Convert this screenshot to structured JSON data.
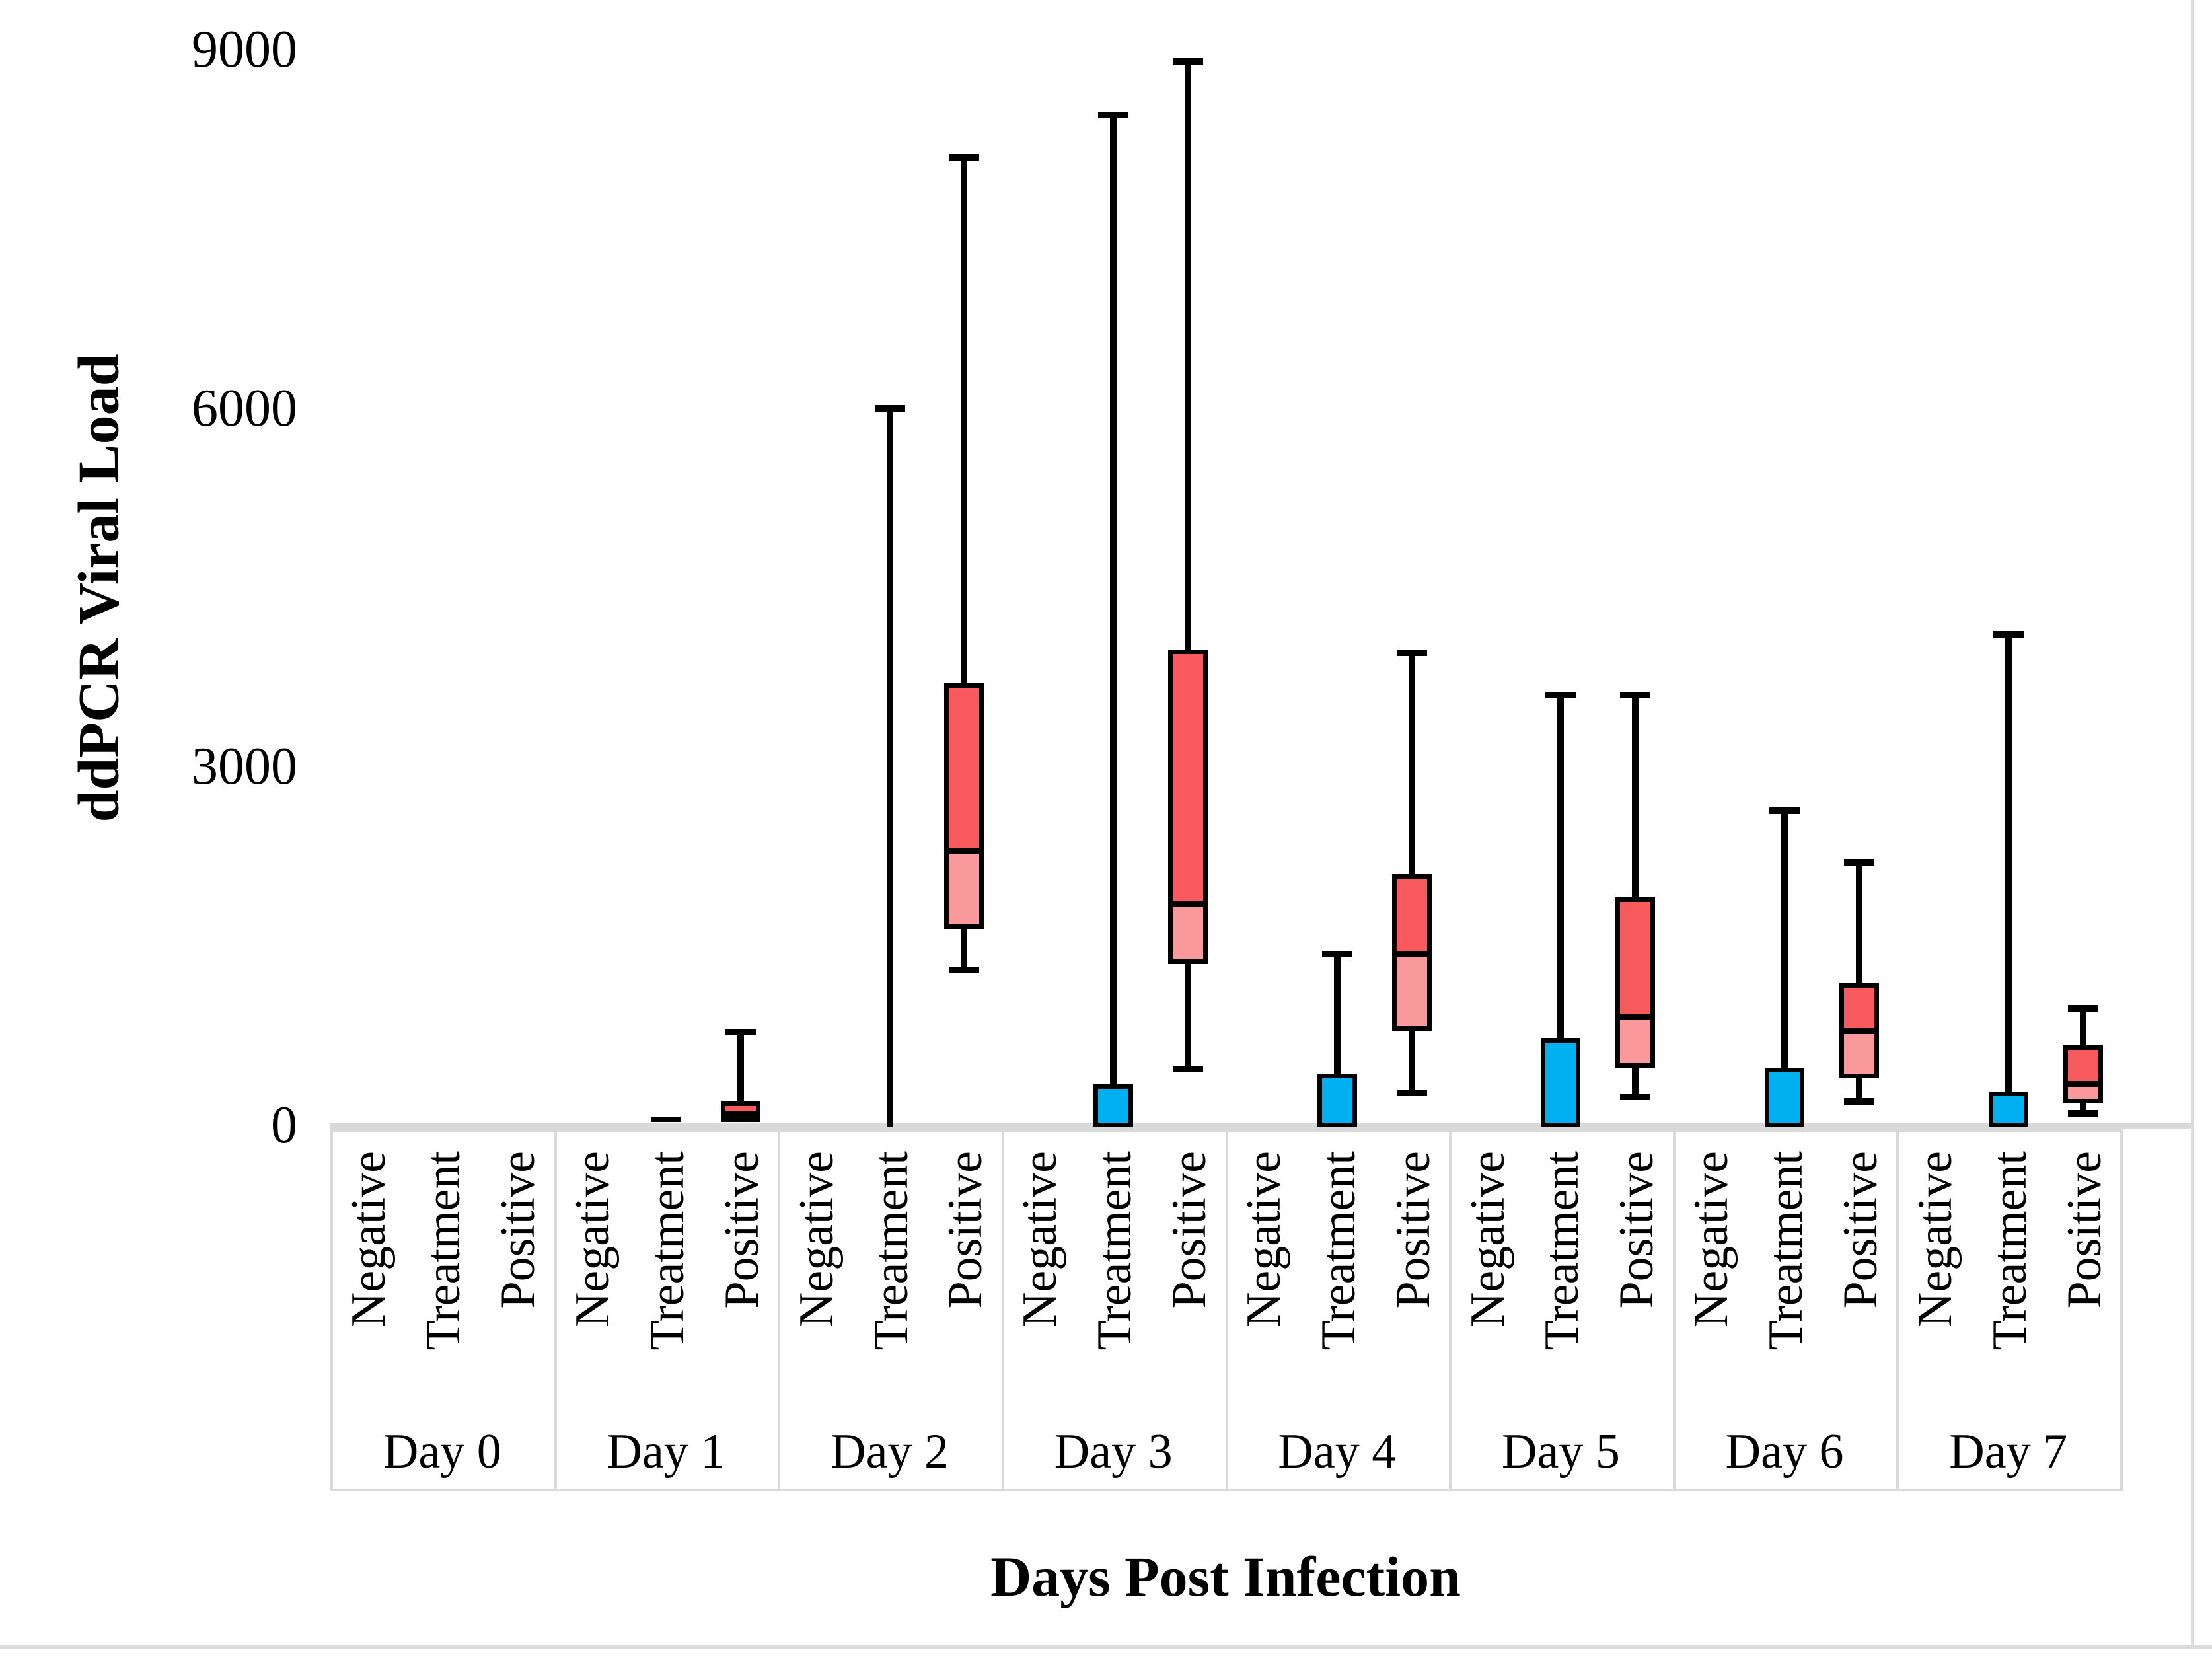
{
  "figure": {
    "background_color": "#ffffff",
    "plot_border_color": "#d9d9d9",
    "axis_band_border_color": "#d9d9d9"
  },
  "colors": {
    "treatment_box_fill": "#00b0f0",
    "positive_box_upper_fill": "#f7595c",
    "positive_box_lower_fill": "#f9999b",
    "box_border": "#000000",
    "whisker": "#000000",
    "median": "#000000"
  },
  "chart_data": {
    "type": "boxplot",
    "title": "",
    "xlabel": "Days Post Infection",
    "ylabel": "ddPCR Viral Load",
    "ylim": [
      0,
      9000
    ],
    "y_ticks": [
      0,
      3000,
      6000,
      9000
    ],
    "grid": "off",
    "legend": "none",
    "group_categories": [
      "Day 0",
      "Day 1",
      "Day 2",
      "Day 3",
      "Day 4",
      "Day 5",
      "Day 6",
      "Day 7"
    ],
    "sub_categories": [
      "Negative",
      "Treatment",
      "Positive"
    ],
    "boxes": [
      {
        "day": "Day 0",
        "category": "Negative",
        "values": null
      },
      {
        "day": "Day 0",
        "category": "Treatment",
        "values": null
      },
      {
        "day": "Day 0",
        "category": "Positive",
        "values": null
      },
      {
        "day": "Day 1",
        "category": "Negative",
        "values": null
      },
      {
        "day": "Day 1",
        "category": "Treatment",
        "values": {
          "min": 0,
          "q1": 0,
          "median": 0,
          "q3": 0,
          "max": 0
        }
      },
      {
        "day": "Day 1",
        "category": "Positive",
        "values": {
          "min": 30,
          "q1": 30,
          "median": 100,
          "q3": 200,
          "max": 780
        }
      },
      {
        "day": "Day 2",
        "category": "Negative",
        "values": null
      },
      {
        "day": "Day 2",
        "category": "Treatment",
        "values": {
          "min": 0,
          "q1": 0,
          "median": 0,
          "q3": 0,
          "max": 6000
        }
      },
      {
        "day": "Day 2",
        "category": "Positive",
        "values": {
          "min": 1300,
          "q1": 1640,
          "median": 2300,
          "q3": 3700,
          "max": 8100
        }
      },
      {
        "day": "Day 3",
        "category": "Negative",
        "values": null
      },
      {
        "day": "Day 3",
        "category": "Treatment",
        "values": {
          "min": 0,
          "q1": 0,
          "median": 0,
          "q3": 340,
          "max": 8450
        }
      },
      {
        "day": "Day 3",
        "category": "Positive",
        "values": {
          "min": 470,
          "q1": 1350,
          "median": 1850,
          "q3": 3980,
          "max": 8900
        }
      },
      {
        "day": "Day 4",
        "category": "Negative",
        "values": null
      },
      {
        "day": "Day 4",
        "category": "Treatment",
        "values": {
          "min": 0,
          "q1": 0,
          "median": 0,
          "q3": 430,
          "max": 1430
        }
      },
      {
        "day": "Day 4",
        "category": "Positive",
        "values": {
          "min": 270,
          "q1": 790,
          "median": 1430,
          "q3": 2100,
          "max": 3950
        }
      },
      {
        "day": "Day 5",
        "category": "Negative",
        "values": null
      },
      {
        "day": "Day 5",
        "category": "Treatment",
        "values": {
          "min": 0,
          "q1": 0,
          "median": 0,
          "q3": 730,
          "max": 3600
        }
      },
      {
        "day": "Day 5",
        "category": "Positive",
        "values": {
          "min": 240,
          "q1": 480,
          "median": 910,
          "q3": 1910,
          "max": 3600
        }
      },
      {
        "day": "Day 6",
        "category": "Negative",
        "values": null
      },
      {
        "day": "Day 6",
        "category": "Treatment",
        "values": {
          "min": 0,
          "q1": 0,
          "median": 0,
          "q3": 480,
          "max": 2630
        }
      },
      {
        "day": "Day 6",
        "category": "Positive",
        "values": {
          "min": 200,
          "q1": 390,
          "median": 790,
          "q3": 1190,
          "max": 2200
        }
      },
      {
        "day": "Day 7",
        "category": "Negative",
        "values": null
      },
      {
        "day": "Day 7",
        "category": "Treatment",
        "values": {
          "min": 0,
          "q1": 0,
          "median": 0,
          "q3": 280,
          "max": 4110
        }
      },
      {
        "day": "Day 7",
        "category": "Positive",
        "values": {
          "min": 100,
          "q1": 180,
          "median": 350,
          "q3": 670,
          "max": 980
        }
      }
    ]
  }
}
